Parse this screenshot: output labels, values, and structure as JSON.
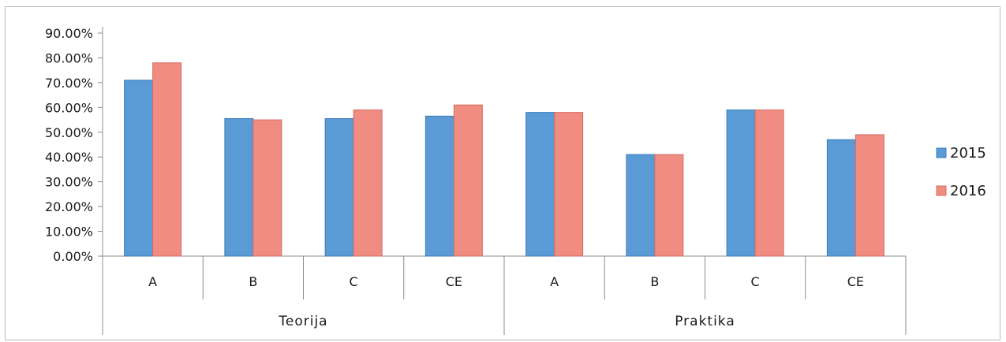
{
  "chart_data": {
    "type": "bar",
    "categories": [
      "A",
      "B",
      "C",
      "CE",
      "A",
      "B",
      "C",
      "CE"
    ],
    "groups": [
      {
        "label": "Teorija",
        "count": 4
      },
      {
        "label": "Praktika",
        "count": 4
      }
    ],
    "series": [
      {
        "name": "2015",
        "color": "#5b9bd5",
        "values": [
          0.71,
          0.555,
          0.555,
          0.565,
          0.58,
          0.41,
          0.59,
          0.47
        ]
      },
      {
        "name": "2016",
        "color": "#f08c82",
        "values": [
          0.78,
          0.55,
          0.59,
          0.61,
          0.58,
          0.41,
          0.59,
          0.49
        ]
      }
    ],
    "yticks": [
      "0.00%",
      "10.00%",
      "20.00%",
      "30.00%",
      "40.00%",
      "50.00%",
      "60.00%",
      "70.00%",
      "80.00%",
      "90.00%"
    ],
    "ylim": [
      0,
      0.9
    ],
    "title": "",
    "xlabel": "",
    "ylabel": "",
    "legend_position": "right",
    "grid": false
  }
}
